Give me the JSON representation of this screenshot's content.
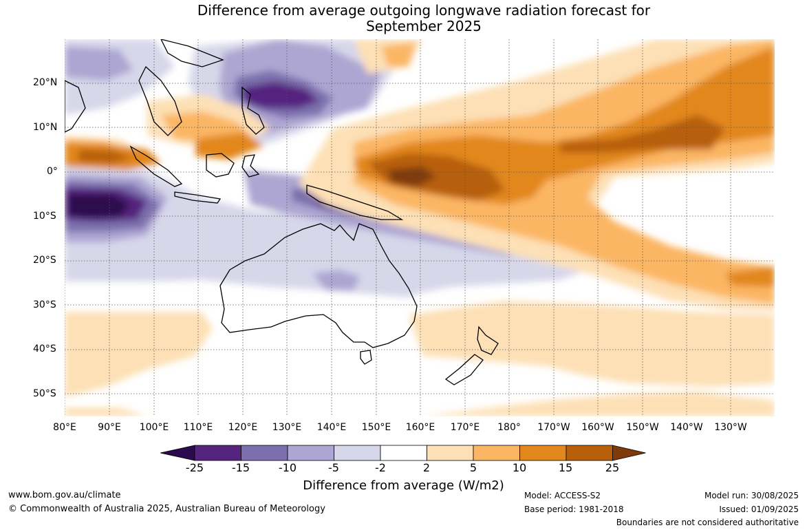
{
  "title": {
    "line1": "Difference from average outgoing longwave radiation forecast for",
    "line2": "September 2025"
  },
  "map": {
    "lat_labels": [
      "20°N",
      "10°N",
      "0°",
      "10°S",
      "20°S",
      "30°S",
      "40°S",
      "50°S"
    ],
    "lon_labels": [
      "80°E",
      "90°E",
      "100°E",
      "110°E",
      "120°E",
      "130°E",
      "140°E",
      "150°E",
      "160°E",
      "170°E",
      "180°",
      "170°W",
      "160°W",
      "150°W",
      "140°W",
      "130°W"
    ]
  },
  "legend": {
    "title": "Difference from average (W/m2)",
    "tick_labels": [
      "-25",
      "-15",
      "-10",
      "-5",
      "-2",
      "2",
      "5",
      "10",
      "15",
      "25"
    ],
    "colors": [
      "#2d0a4e",
      "#55247f",
      "#7b6fad",
      "#ada6d2",
      "#d7d7ea",
      "#ffffff",
      "#fde0b6",
      "#fbb663",
      "#e2871c",
      "#b75f0b",
      "#7e3a0a"
    ]
  },
  "footer": {
    "website": "www.bom.gov.au/climate",
    "copyright": "© Commonwealth of Australia 2025, Australian Bureau of Meteorology",
    "model": "Model: ACCESS-S2",
    "base_period": "Base period: 1981-2018",
    "model_run": "Model run: 30/08/2025",
    "issued": "Issued: 01/09/2025",
    "disclaimer": "Boundaries are not considered authoritative"
  }
}
